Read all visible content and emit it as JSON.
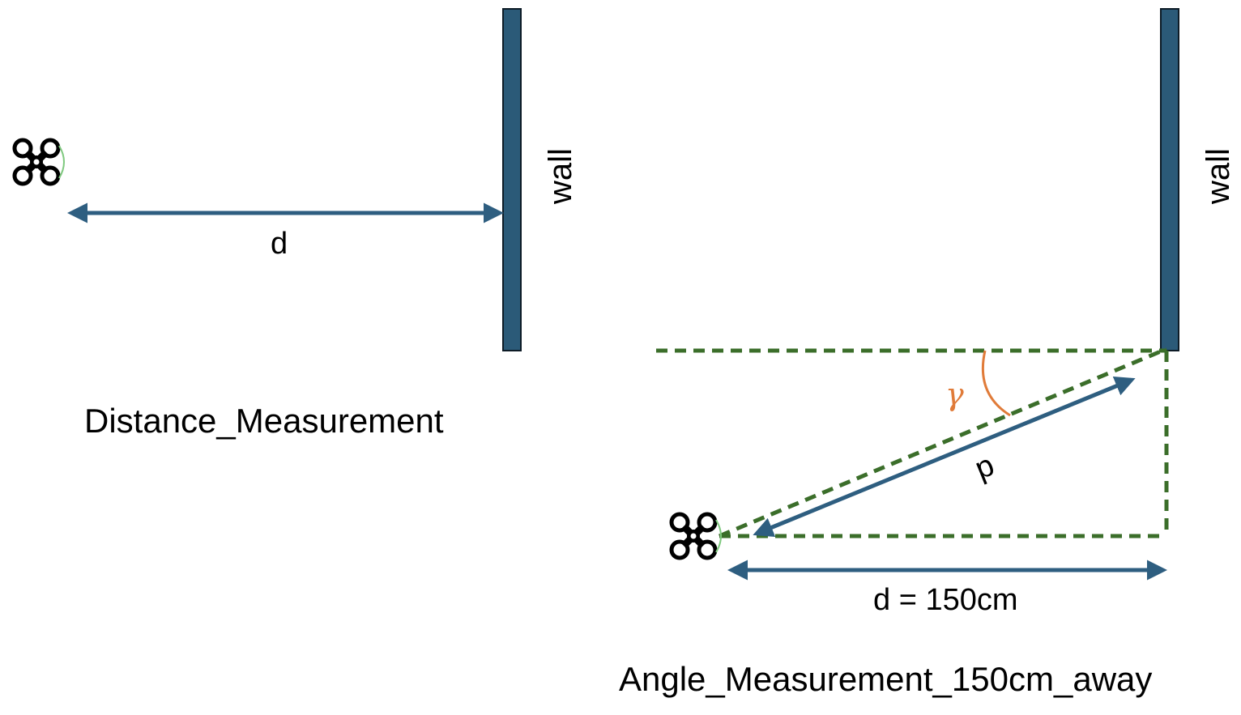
{
  "left_panel": {
    "wall_label": "wall",
    "distance_label": "d",
    "caption": "Distance_Measurement"
  },
  "right_panel": {
    "wall_label": "wall",
    "distance_label": "d = 150cm",
    "path_label": "p",
    "angle_label": "γ",
    "caption": "Angle_Measurement_150cm_away"
  },
  "colors": {
    "wall_fill": "#2b5a78",
    "wall_stroke": "#0d1b26",
    "arrow": "#2e5e80",
    "dashed": "#3b6e2a",
    "angle_arc": "#e07b39",
    "drone": "#000000",
    "drone_accent": "#7fc97f"
  },
  "icons": [
    "drone-icon"
  ]
}
